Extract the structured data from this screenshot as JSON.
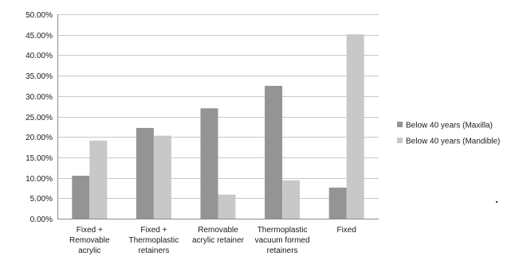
{
  "chart_data": {
    "type": "bar",
    "title": "",
    "xlabel": "",
    "ylabel": "",
    "ylim": [
      0,
      50
    ],
    "y_tick_step": 5,
    "y_tick_format": "percent_2dp",
    "grid": "horizontal",
    "legend_position": "right",
    "categories": [
      [
        "Fixed +",
        "Removable",
        "acrylic"
      ],
      [
        "Fixed +",
        "Thermoplastic",
        "retainers"
      ],
      [
        "Removable",
        "acrylic retainer"
      ],
      [
        "Thermoplastic",
        "vacuum formed",
        "retainers"
      ],
      [
        "Fixed"
      ]
    ],
    "series": [
      {
        "name": "Below 40 years (Maxilla)",
        "color": "#949494",
        "values": [
          10.5,
          22.2,
          27.0,
          32.5,
          7.6
        ]
      },
      {
        "name": "Below 40 years (Mandible)",
        "color": "#c8c8c8",
        "values": [
          19.1,
          20.3,
          5.9,
          9.4,
          45.1
        ]
      }
    ]
  }
}
